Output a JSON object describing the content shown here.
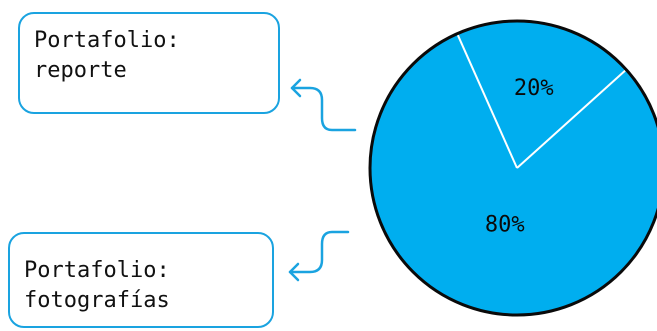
{
  "colors": {
    "slice_fill": "#00aeef",
    "slice_edge": "#0a0a0a",
    "divider": "#ffffff",
    "box_border": "#1aa3e0",
    "arrow": "#1aa3e0",
    "label_text": "#0a0a0a"
  },
  "callouts": {
    "report": {
      "line1": "Portafolio:",
      "line2": "reporte"
    },
    "photos": {
      "line1": "Portafolio:",
      "line2": "fotografías"
    }
  },
  "chart_data": {
    "type": "pie",
    "title": "",
    "slices": [
      {
        "label": "Portafolio: reporte",
        "value": 20,
        "display": "20%"
      },
      {
        "label": "Portafolio: fotografías",
        "value": 80,
        "display": "80%"
      }
    ]
  }
}
